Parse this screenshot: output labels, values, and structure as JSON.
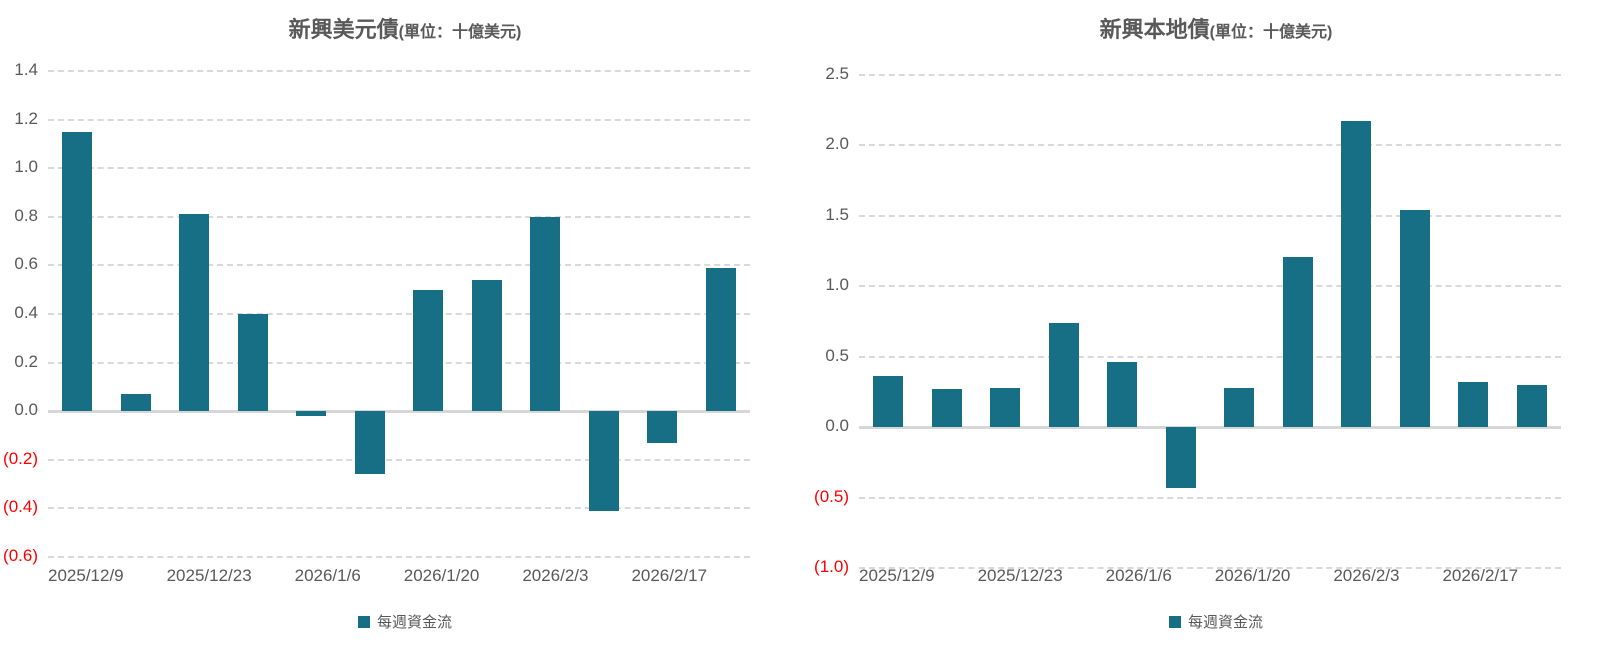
{
  "colors": {
    "bar": "#166F85",
    "gridline": "#D9D9D9",
    "zero_line": "#D6D6D6",
    "axis_text": "#595959",
    "negative_axis_text": "#FF0000",
    "title_text": "#595959"
  },
  "charts": [
    {
      "title": "新興美元債",
      "title_unit": "(單位：十億美元)",
      "legend_label": "每週資金流",
      "chart_data": {
        "type": "bar",
        "title": "新興美元債(單位：十億美元)",
        "legend": [
          "每週資金流"
        ],
        "legend_position": "bottom",
        "grid": "dashed-horizontal",
        "ylim": [
          -0.6,
          1.4
        ],
        "y_ticks": [
          {
            "label": "1.4",
            "value": 1.4
          },
          {
            "label": "1.2",
            "value": 1.2
          },
          {
            "label": "1.0",
            "value": 1.0
          },
          {
            "label": "0.8",
            "value": 0.8
          },
          {
            "label": "0.6",
            "value": 0.6
          },
          {
            "label": "0.4",
            "value": 0.4
          },
          {
            "label": "0.2",
            "value": 0.2
          },
          {
            "label": "0.0",
            "value": 0.0
          },
          {
            "label": "(0.2)",
            "value": -0.2
          },
          {
            "label": "(0.4)",
            "value": -0.4
          },
          {
            "label": "(0.6)",
            "value": -0.6
          }
        ],
        "x_tick_labels": [
          "2025/12/9",
          "2025/12/23",
          "2026/1/6",
          "2026/1/20",
          "2026/2/3",
          "2026/2/17"
        ],
        "x_tick_every": 2,
        "series": [
          {
            "name": "每週資金流",
            "values": [
              1.15,
              0.07,
              0.81,
              0.4,
              -0.02,
              -0.26,
              0.5,
              0.54,
              0.8,
              -0.41,
              -0.13,
              0.59
            ]
          }
        ]
      }
    },
    {
      "title": "新興本地債",
      "title_unit": "(單位：十億美元)",
      "legend_label": "每週資金流",
      "chart_data": {
        "type": "bar",
        "title": "新興本地債(單位：十億美元)",
        "legend": [
          "每週資金流"
        ],
        "legend_position": "bottom",
        "grid": "dashed-horizontal",
        "ylim": [
          -1.0,
          2.5
        ],
        "y_ticks": [
          {
            "label": "2.5",
            "value": 2.5
          },
          {
            "label": "2.0",
            "value": 2.0
          },
          {
            "label": "1.5",
            "value": 1.5
          },
          {
            "label": "1.0",
            "value": 1.0
          },
          {
            "label": "0.5",
            "value": 0.5
          },
          {
            "label": "0.0",
            "value": 0.0
          },
          {
            "label": "(0.5)",
            "value": -0.5
          },
          {
            "label": "(1.0)",
            "value": -1.0
          }
        ],
        "x_tick_labels": [
          "2025/12/9",
          "2025/12/23",
          "2026/1/6",
          "2026/1/20",
          "2026/2/3",
          "2026/2/17"
        ],
        "x_tick_every": 2,
        "series": [
          {
            "name": "每週資金流",
            "values": [
              0.36,
              0.27,
              0.28,
              0.74,
              0.46,
              -0.43,
              0.28,
              1.21,
              2.17,
              1.54,
              0.32,
              0.3
            ]
          }
        ]
      }
    }
  ]
}
